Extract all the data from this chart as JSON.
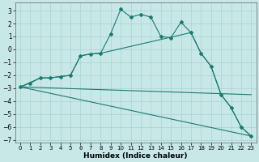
{
  "xlabel": "Humidex (Indice chaleur)",
  "background_color": "#c8e8e8",
  "line_color": "#1a7a6e",
  "ylim": [
    -7.2,
    3.6
  ],
  "xlim": [
    -0.5,
    23.5
  ],
  "yticks": [
    -7,
    -6,
    -5,
    -4,
    -3,
    -2,
    -1,
    0,
    1,
    2,
    3
  ],
  "xticks": [
    0,
    1,
    2,
    3,
    4,
    5,
    6,
    7,
    8,
    9,
    10,
    11,
    12,
    13,
    14,
    15,
    16,
    17,
    18,
    19,
    20,
    21,
    22,
    23
  ],
  "line1_x": [
    0,
    1,
    2,
    3,
    4,
    5,
    6,
    7,
    8,
    9,
    10,
    11,
    12,
    13,
    14,
    15,
    16,
    17,
    18,
    19,
    20,
    21,
    22,
    23
  ],
  "line1_y": [
    -2.9,
    -2.6,
    -2.2,
    -2.2,
    -2.1,
    -2.0,
    -0.5,
    -0.35,
    -0.3,
    1.2,
    3.1,
    2.5,
    2.7,
    2.5,
    1.0,
    0.9,
    2.1,
    1.3,
    -0.3,
    -1.3,
    -3.5,
    -4.5,
    -6.0,
    -6.7
  ],
  "line2_x": [
    0,
    2,
    3,
    4,
    5,
    6,
    7,
    8,
    17,
    18,
    19,
    20,
    21,
    22,
    23
  ],
  "line2_y": [
    -2.9,
    -2.2,
    -2.2,
    -2.1,
    -2.0,
    -0.5,
    -0.35,
    -0.3,
    1.3,
    -0.3,
    -1.3,
    -3.5,
    -4.5,
    -6.0,
    -6.7
  ],
  "line3_x": [
    0,
    23
  ],
  "line3_y": [
    -2.9,
    -6.7
  ],
  "line4_x": [
    0,
    23
  ],
  "line4_y": [
    -2.9,
    -3.5
  ],
  "xlabel_fontsize": 6.5,
  "tick_fontsize": 5.5
}
